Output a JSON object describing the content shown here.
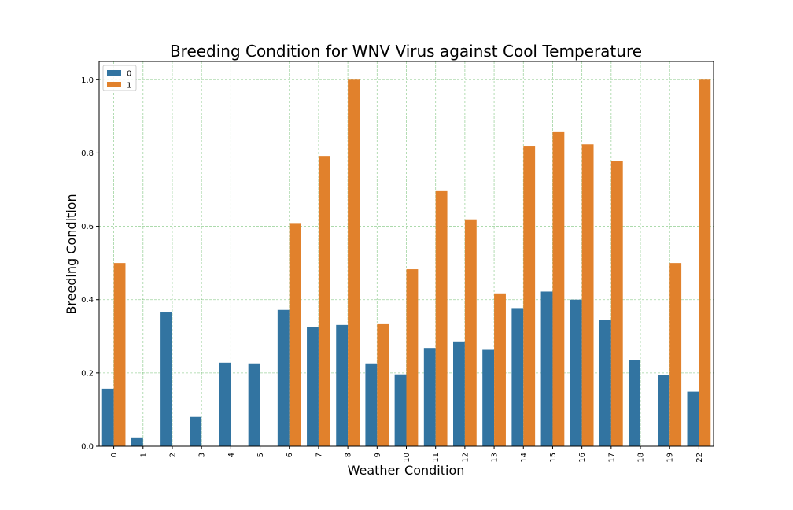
{
  "chart_data": {
    "type": "bar",
    "title": "Breeding Condition for WNV Virus against Cool Temperature",
    "xlabel": "Weather Condition",
    "ylabel": "Breeding Condition",
    "categories": [
      "0",
      "1",
      "2",
      "3",
      "4",
      "5",
      "6",
      "7",
      "8",
      "9",
      "10",
      "11",
      "12",
      "13",
      "14",
      "15",
      "16",
      "17",
      "18",
      "19",
      "22"
    ],
    "series": [
      {
        "name": "0",
        "color": "#3274a1",
        "values": [
          0.157,
          0.024,
          0.365,
          0.08,
          0.228,
          0.226,
          0.372,
          0.325,
          0.331,
          0.226,
          0.196,
          0.268,
          0.286,
          0.263,
          0.377,
          0.422,
          0.4,
          0.344,
          0.235,
          0.194,
          0.149
        ]
      },
      {
        "name": "1",
        "color": "#e1812c",
        "values": [
          0.5,
          0,
          0,
          0,
          0,
          0,
          0.609,
          0.792,
          1.0,
          0.333,
          0.483,
          0.696,
          0.619,
          0.417,
          0.818,
          0.857,
          0.824,
          0.778,
          0,
          0.5,
          1.0
        ]
      }
    ],
    "ylim": [
      0,
      1.05
    ],
    "yticks": [
      "0.0",
      "0.2",
      "0.4",
      "0.6",
      "0.8",
      "1.0"
    ],
    "grid": true,
    "grid_color": "#2ca02c",
    "legend_position": "top-left"
  }
}
